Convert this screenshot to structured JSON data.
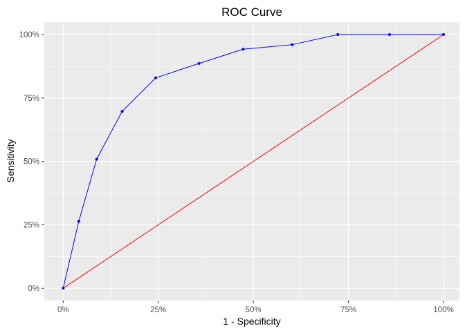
{
  "chart_data": {
    "type": "line",
    "title": "ROC Curve",
    "xlabel": "1 - Specificity",
    "ylabel": "Sensitivity",
    "xlim": [
      0,
      1
    ],
    "ylim": [
      0,
      1
    ],
    "x_ticks": [
      0,
      0.25,
      0.5,
      0.75,
      1
    ],
    "y_ticks": [
      0,
      0.25,
      0.5,
      0.75,
      1
    ],
    "x_tick_labels": [
      "0%",
      "25%",
      "50%",
      "75%",
      "100%"
    ],
    "y_tick_labels": [
      "0%",
      "25%",
      "50%",
      "75%",
      "100%"
    ],
    "grid": true,
    "series": [
      {
        "color": "#0000ff",
        "markers": true,
        "x": [
          0,
          0.041,
          0.088,
          0.155,
          0.243,
          0.357,
          0.473,
          0.602,
          0.722,
          0.858,
          1.0
        ],
        "y": [
          0,
          0.264,
          0.509,
          0.697,
          0.829,
          0.886,
          0.942,
          0.96,
          1.0,
          1.0,
          1.0
        ]
      },
      {
        "color": "#ff0000",
        "markers": false,
        "x": [
          0,
          1
        ],
        "y": [
          0,
          1
        ]
      }
    ]
  }
}
